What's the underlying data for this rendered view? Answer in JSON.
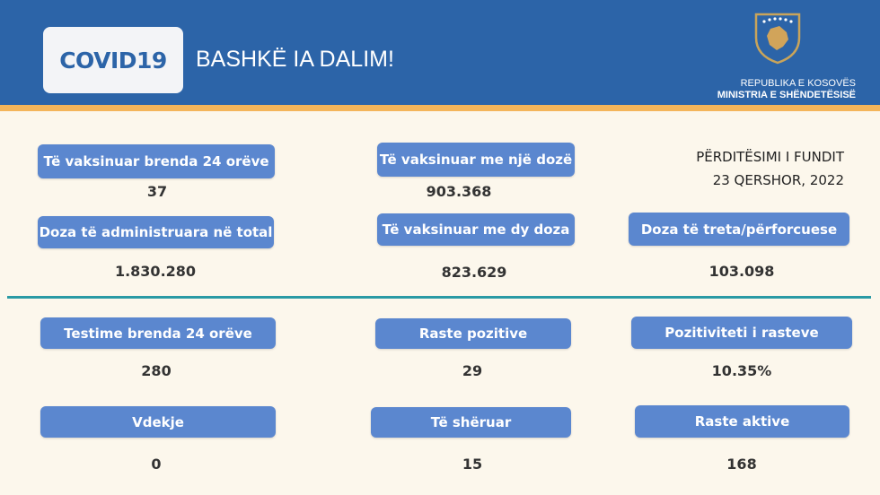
{
  "header": {
    "logo": "COVID19",
    "slogan": "BASHKË IA DALIM!",
    "org_line1": "REPUBLIKA E KOSOVËS",
    "org_line2": "MINISTRIA E SHËNDETËSISË",
    "emblem": "kosovo-coat-of-arms-icon"
  },
  "update": {
    "label": "PËRDITËSIMI I FUNDIT",
    "date": "23 QERSHOR, 2022"
  },
  "stats": [
    {
      "label": "Të vaksinuar brenda 24 orëve",
      "value": "37"
    },
    {
      "label": "Doza të administruara në total",
      "value": "1.830.280"
    },
    {
      "label": "Të vaksinuar me një dozë",
      "value": "903.368"
    },
    {
      "label": "Të vaksinuar me dy doza",
      "value": "823.629"
    },
    {
      "label": "Doza të treta/përforcuese",
      "value": "103.098"
    },
    {
      "label": "Testime brenda 24 orëve",
      "value": "280"
    },
    {
      "label": "Raste pozitive",
      "value": "29"
    },
    {
      "label": "Pozitiviteti i rasteve",
      "value": "10.35%"
    },
    {
      "label": "Vdekje",
      "value": "0"
    },
    {
      "label": "Të shëruar",
      "value": "15"
    },
    {
      "label": "Raste aktive",
      "value": "168"
    }
  ],
  "colors": {
    "header": "#2c64a8",
    "stripe": "#f4b55a",
    "label_bg": "#5b87cf",
    "divider": "#2a9aa5",
    "background": "#fcf7ec"
  }
}
